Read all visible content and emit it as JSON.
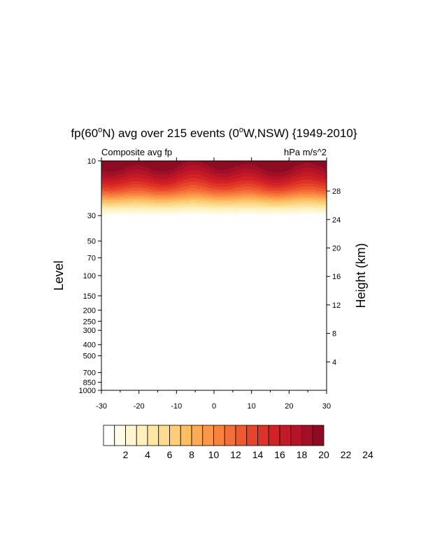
{
  "chart_data": {
    "type": "heatmap",
    "title": {
      "pre": "fp(60",
      "sup1": "o",
      "mid": "N) avg over 215 events (0",
      "sup2": "o",
      "post": "W,NSW) {1949-2010}"
    },
    "left_string": "Composite avg fp",
    "right_string": "hPa m/s^2",
    "xlabel": "",
    "ylabel": "Level",
    "y2label": "Height (km)",
    "xlim": [
      -30,
      30
    ],
    "x_ticks": [
      -30,
      -20,
      -10,
      0,
      10,
      20,
      30
    ],
    "ylim_hPa": [
      1000,
      10
    ],
    "y_log_scale": true,
    "y_ticks_hPa": [
      10,
      30,
      50,
      70,
      100,
      150,
      200,
      250,
      300,
      400,
      500,
      700,
      850,
      1000
    ],
    "y2_ticks_km": [
      4,
      8,
      12,
      16,
      20,
      24,
      28
    ],
    "colorbar": {
      "labels": [
        "2",
        "4",
        "6",
        "8",
        "10",
        "12",
        "14",
        "16",
        "18",
        "20",
        "22",
        "24"
      ],
      "colors": [
        "#ffffff",
        "#fffbe6",
        "#fff5d0",
        "#fff0bd",
        "#ffe6a3",
        "#fedb8e",
        "#fece76",
        "#fdbd63",
        "#fdaa55",
        "#fc964a",
        "#f98140",
        "#f56d38",
        "#ef5930",
        "#e6452b",
        "#dc3228",
        "#d22226",
        "#c41a27",
        "#b31427",
        "#a01026",
        "#8d0c24"
      ]
    },
    "field": {
      "description_level_range_hPa": [
        10,
        30
      ],
      "level_values_hPa": [
        10,
        12,
        14,
        16,
        18,
        20,
        22,
        24,
        26,
        28,
        30
      ],
      "base_values": [
        25.5,
        23,
        20.5,
        18,
        15.5,
        12.5,
        9.5,
        7,
        4.5,
        2.5,
        1
      ]
    }
  }
}
